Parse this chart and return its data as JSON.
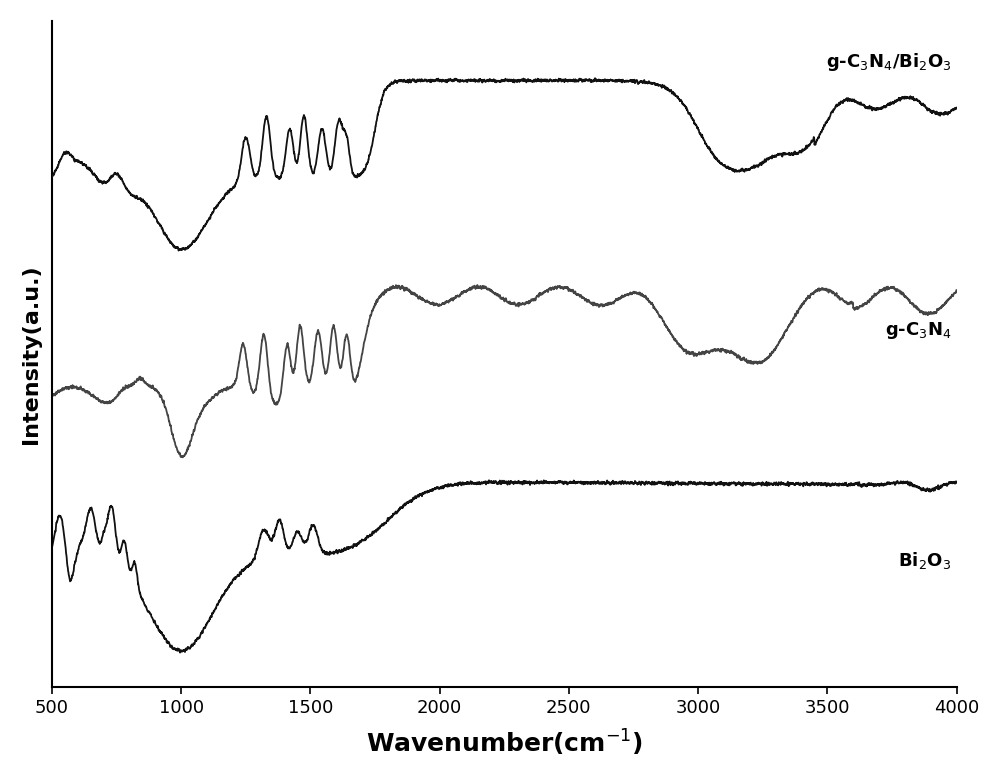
{
  "xmin": 500,
  "xmax": 4000,
  "xlabel": "Wavenumber(cm$^{-1}$)",
  "ylabel": "Intensity(a.u.)",
  "line_color_black": "#000000",
  "line_color_dark": "#333333",
  "bg_color": "#ffffff",
  "label1": "g-C$_3$N$_4$/Bi$_2$O$_3$",
  "label2": "g-C$_3$N$_4$",
  "label3": "Bi$_2$O$_3$"
}
